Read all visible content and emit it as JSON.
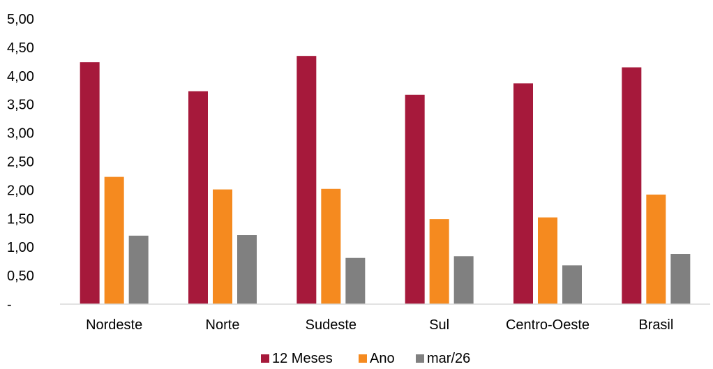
{
  "chart_data": {
    "type": "bar",
    "categories": [
      "Nordeste",
      "Norte",
      "Sudeste",
      "Sul",
      "Centro-Oeste",
      "Brasil"
    ],
    "series": [
      {
        "name": "12 Meses",
        "color": "#a6193b",
        "values": [
          4.24,
          3.73,
          4.35,
          3.67,
          3.87,
          4.15
        ]
      },
      {
        "name": "Ano",
        "color": "#f58a1f",
        "values": [
          2.23,
          2.01,
          2.02,
          1.49,
          1.52,
          1.92
        ]
      },
      {
        "name": "mar/26",
        "color": "#808080",
        "values": [
          1.2,
          1.21,
          0.81,
          0.84,
          0.68,
          0.88
        ]
      }
    ],
    "y_ticks": [
      {
        "value": 0,
        "label": "-"
      },
      {
        "value": 0.5,
        "label": "0,50"
      },
      {
        "value": 1.0,
        "label": "1,00"
      },
      {
        "value": 1.5,
        "label": "1,50"
      },
      {
        "value": 2.0,
        "label": "2,00"
      },
      {
        "value": 2.5,
        "label": "2,50"
      },
      {
        "value": 3.0,
        "label": "3,00"
      },
      {
        "value": 3.5,
        "label": "3,50"
      },
      {
        "value": 4.0,
        "label": "4,00"
      },
      {
        "value": 4.5,
        "label": "4,50"
      },
      {
        "value": 5.0,
        "label": "5,00"
      }
    ],
    "ylim": [
      0,
      5
    ],
    "grid": false,
    "legend_position": "bottom"
  }
}
